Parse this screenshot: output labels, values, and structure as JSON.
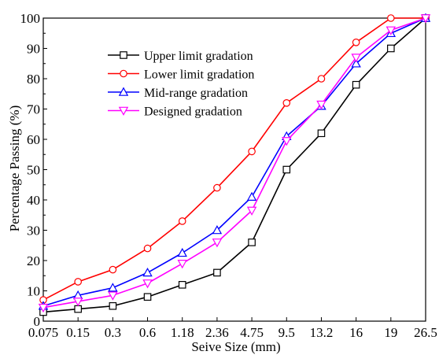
{
  "chart_data": {
    "type": "line",
    "title": "",
    "xlabel": "Seive Size (mm)",
    "ylabel": "Percentage Passing (%)",
    "categories": [
      "0.075",
      "0.15",
      "0.3",
      "0.6",
      "1.18",
      "2.36",
      "4.75",
      "9.5",
      "13.2",
      "16",
      "19",
      "26.5"
    ],
    "yticks": [
      "0",
      "10",
      "20",
      "30",
      "40",
      "50",
      "60",
      "70",
      "80",
      "90",
      "100"
    ],
    "ylim": [
      0,
      100
    ],
    "grid": false,
    "legend_position": "top-left",
    "series": [
      {
        "name": "Upper limit gradation",
        "color": "#000000",
        "marker": "square",
        "values": [
          3,
          4,
          5,
          8,
          12,
          16,
          26,
          50,
          62,
          78,
          90,
          100
        ]
      },
      {
        "name": "Lower limit gradation",
        "color": "#ff0000",
        "marker": "circle",
        "values": [
          7,
          13,
          17,
          24,
          33,
          44,
          56,
          72,
          80,
          92,
          100,
          100
        ]
      },
      {
        "name": "Mid-range gradation",
        "color": "#0000ff",
        "marker": "triangle-up",
        "values": [
          5,
          8.5,
          11,
          16,
          22.5,
          30,
          41,
          61,
          71,
          85,
          95,
          100
        ]
      },
      {
        "name": "Designed gradation",
        "color": "#ff00ff",
        "marker": "triangle-down",
        "values": [
          4.5,
          6.5,
          8.5,
          12.5,
          19,
          26,
          36.5,
          59.5,
          71.5,
          87,
          96,
          100
        ]
      }
    ]
  }
}
